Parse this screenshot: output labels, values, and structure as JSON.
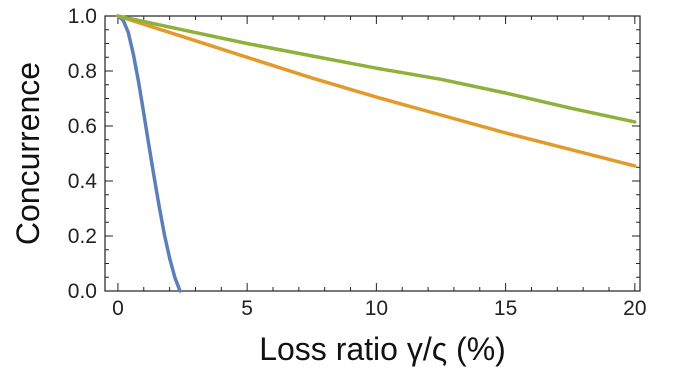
{
  "chart_data": {
    "type": "line",
    "title": "",
    "xlabel": "Loss ratio γ/ς (%)",
    "ylabel": "Concurrence",
    "xlim": [
      -0.5,
      20.2
    ],
    "ylim": [
      0,
      1.0
    ],
    "x_ticks": [
      "0",
      "5",
      "10",
      "15",
      "20"
    ],
    "y_ticks": [
      "0.0",
      "0.2",
      "0.4",
      "0.6",
      "0.8",
      "1.0"
    ],
    "grid": false,
    "legend": "none",
    "series": [
      {
        "color": "#5b7fb8",
        "x": [
          0,
          0.2,
          0.4,
          0.6,
          0.8,
          1.0,
          1.2,
          1.4,
          1.6,
          1.8,
          2.0,
          2.2,
          2.4
        ],
        "y": [
          1.0,
          0.985,
          0.94,
          0.86,
          0.76,
          0.645,
          0.53,
          0.415,
          0.305,
          0.205,
          0.12,
          0.05,
          0.0
        ]
      },
      {
        "color": "#e39a2a",
        "x": [
          0,
          2.5,
          5,
          7.5,
          10,
          12.5,
          15,
          17.5,
          20
        ],
        "y": [
          1.0,
          0.925,
          0.85,
          0.775,
          0.705,
          0.64,
          0.575,
          0.515,
          0.455
        ]
      },
      {
        "color": "#8fb03b",
        "x": [
          0,
          2.5,
          5,
          7.5,
          10,
          12.5,
          15,
          17.5,
          20
        ],
        "y": [
          1.0,
          0.95,
          0.9,
          0.855,
          0.81,
          0.77,
          0.72,
          0.665,
          0.615
        ]
      }
    ]
  }
}
